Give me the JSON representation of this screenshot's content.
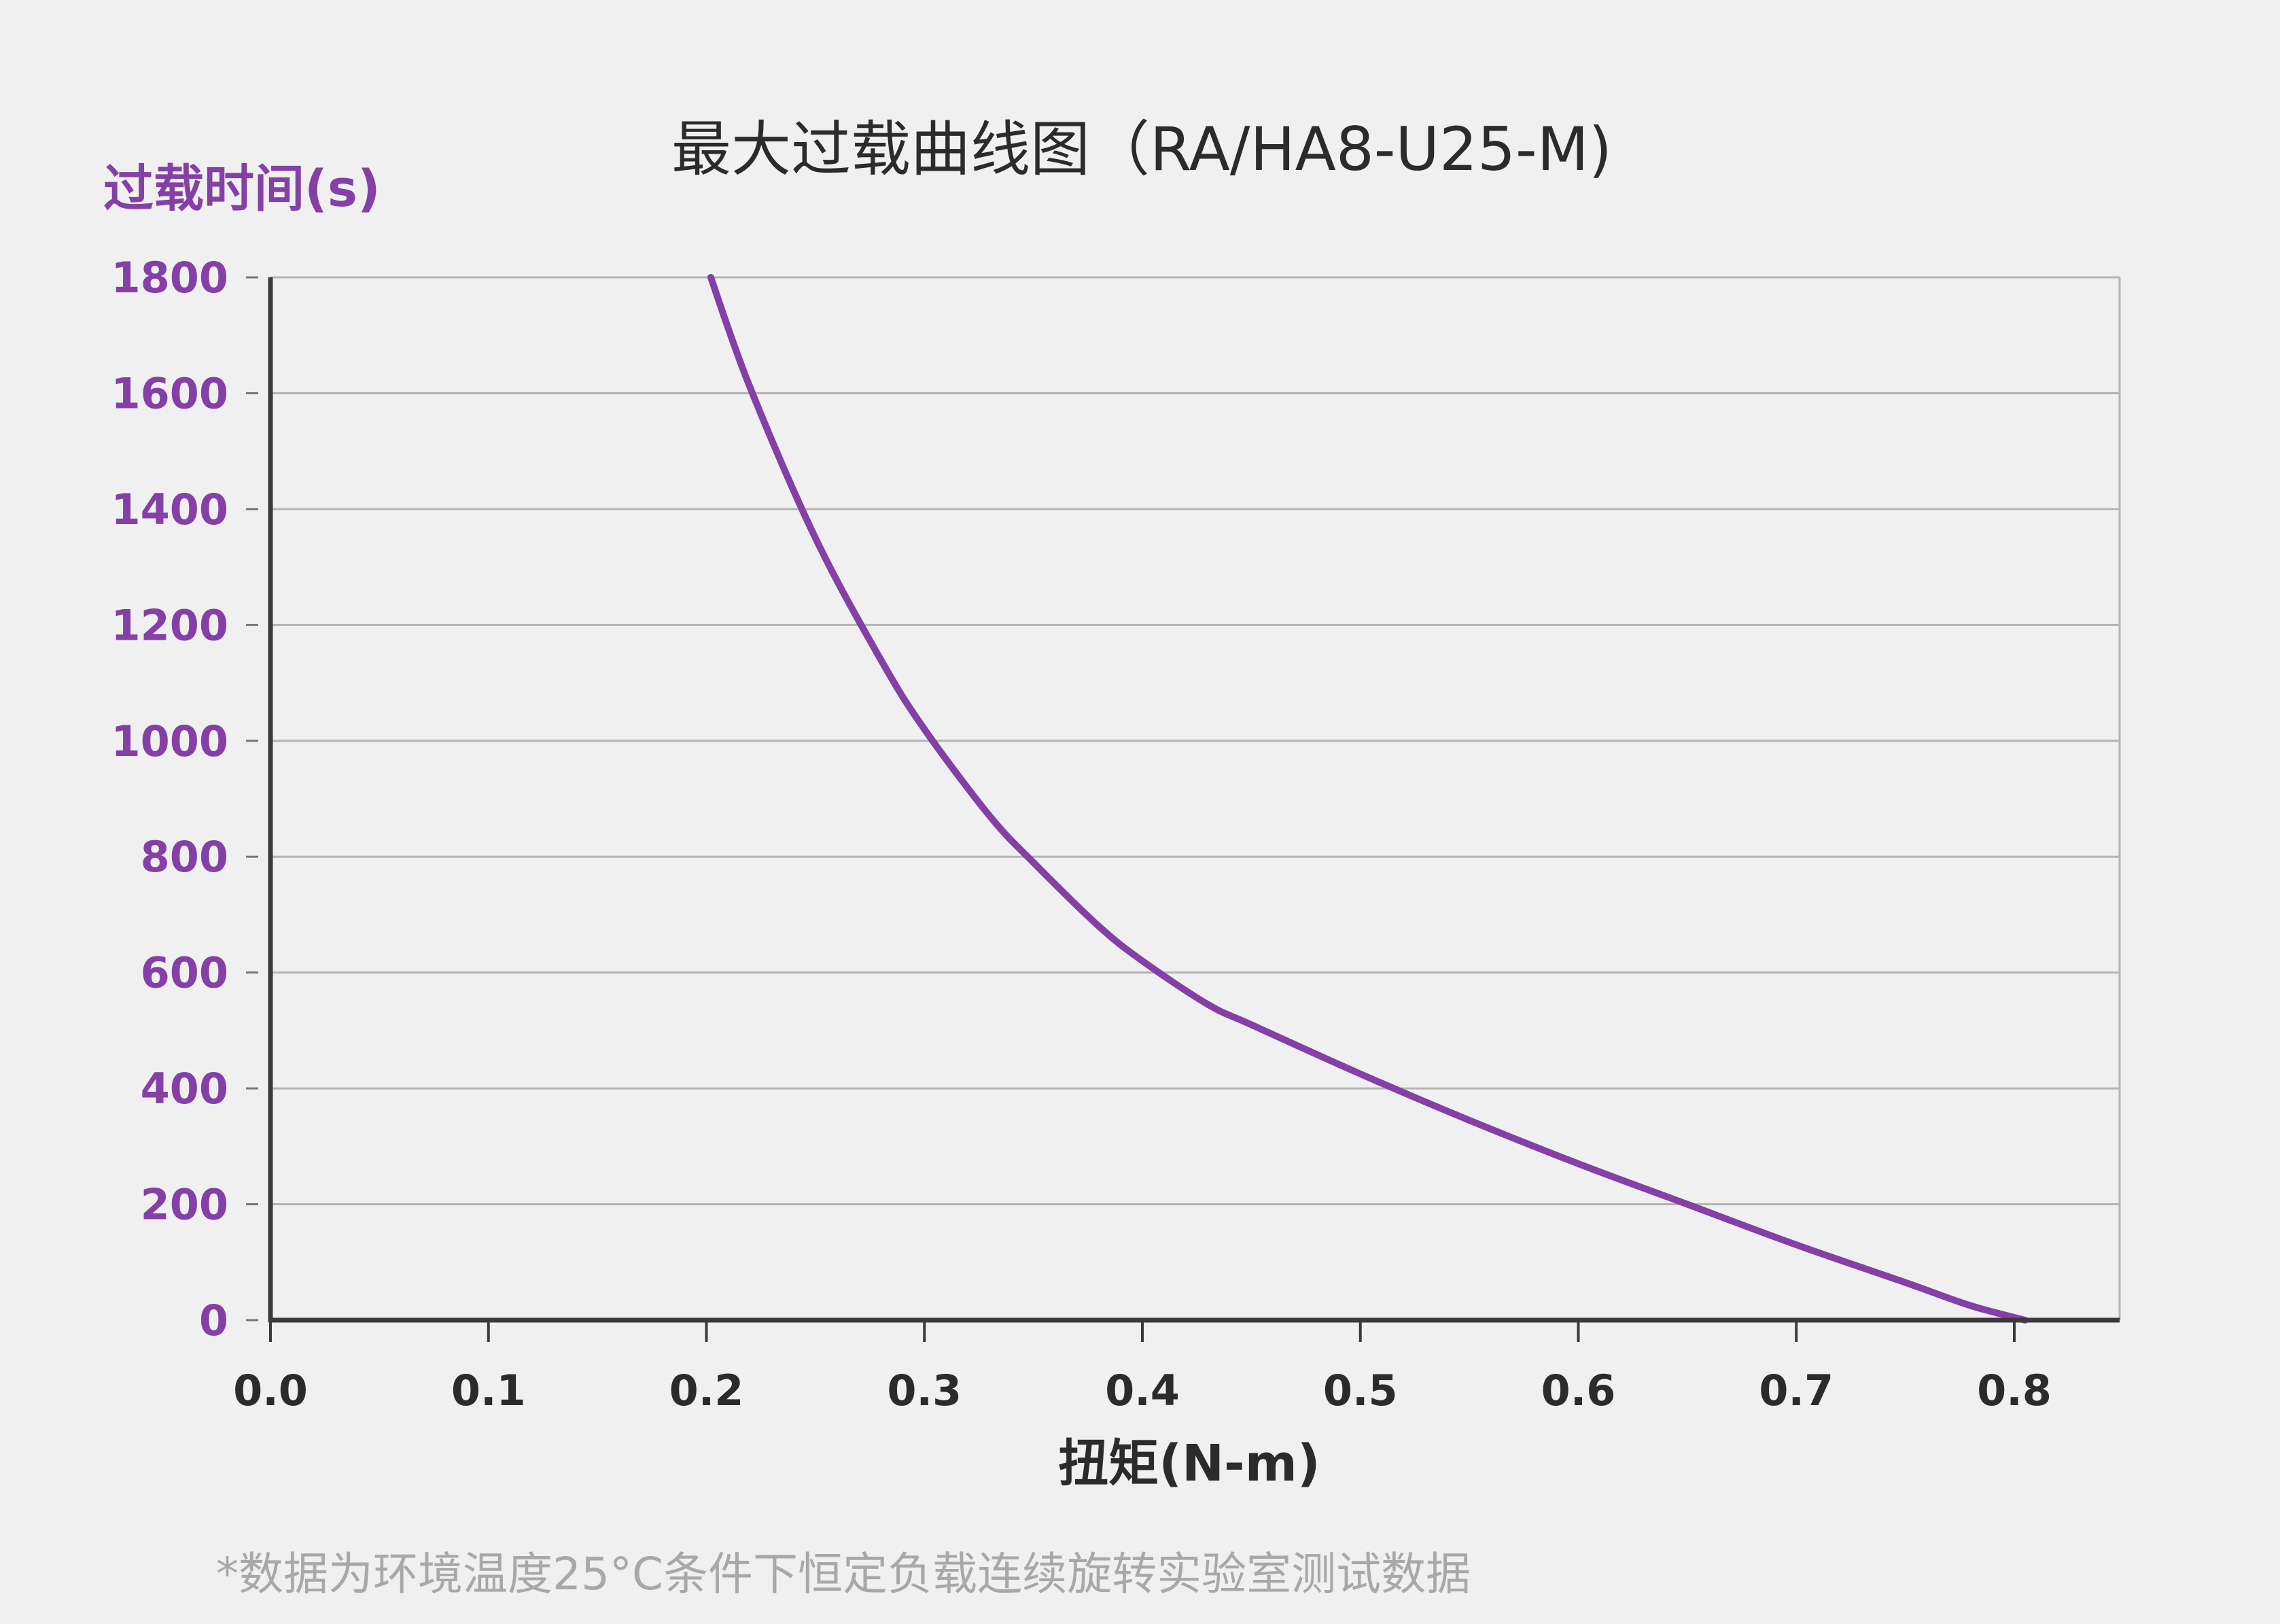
{
  "chart_data": {
    "type": "line",
    "title": "最大过载曲线图（RA/HA8-U25-M)",
    "ylabel": "过载时间(s)",
    "xlabel": "扭矩(N-m)",
    "footnote": "*数据为环境温度25°C条件下恒定负载连续旋转实验室测试数据",
    "xlim": [
      0.0,
      0.85
    ],
    "ylim": [
      0,
      1800
    ],
    "x_ticks": [
      "0.0",
      "0.1",
      "0.2",
      "0.3",
      "0.4",
      "0.5",
      "0.6",
      "0.7",
      "0.8"
    ],
    "y_ticks": [
      "0",
      "200",
      "400",
      "600",
      "800",
      "1000",
      "1200",
      "1400",
      "1600",
      "1800"
    ],
    "grid": true,
    "colors": {
      "series": "#8440a6",
      "axis": "#3a3a3a",
      "grid": "#b4b4b4"
    },
    "series": [
      {
        "x": [
          0.202,
          0.22,
          0.25,
          0.28,
          0.3,
          0.33,
          0.35,
          0.38,
          0.4,
          0.43,
          0.45,
          0.5,
          0.55,
          0.6,
          0.65,
          0.7,
          0.75,
          0.78,
          0.805
        ],
        "y": [
          1800,
          1610,
          1350,
          1140,
          1020,
          870,
          790,
          680,
          620,
          545,
          510,
          425,
          345,
          270,
          200,
          130,
          65,
          25,
          0
        ]
      }
    ]
  }
}
